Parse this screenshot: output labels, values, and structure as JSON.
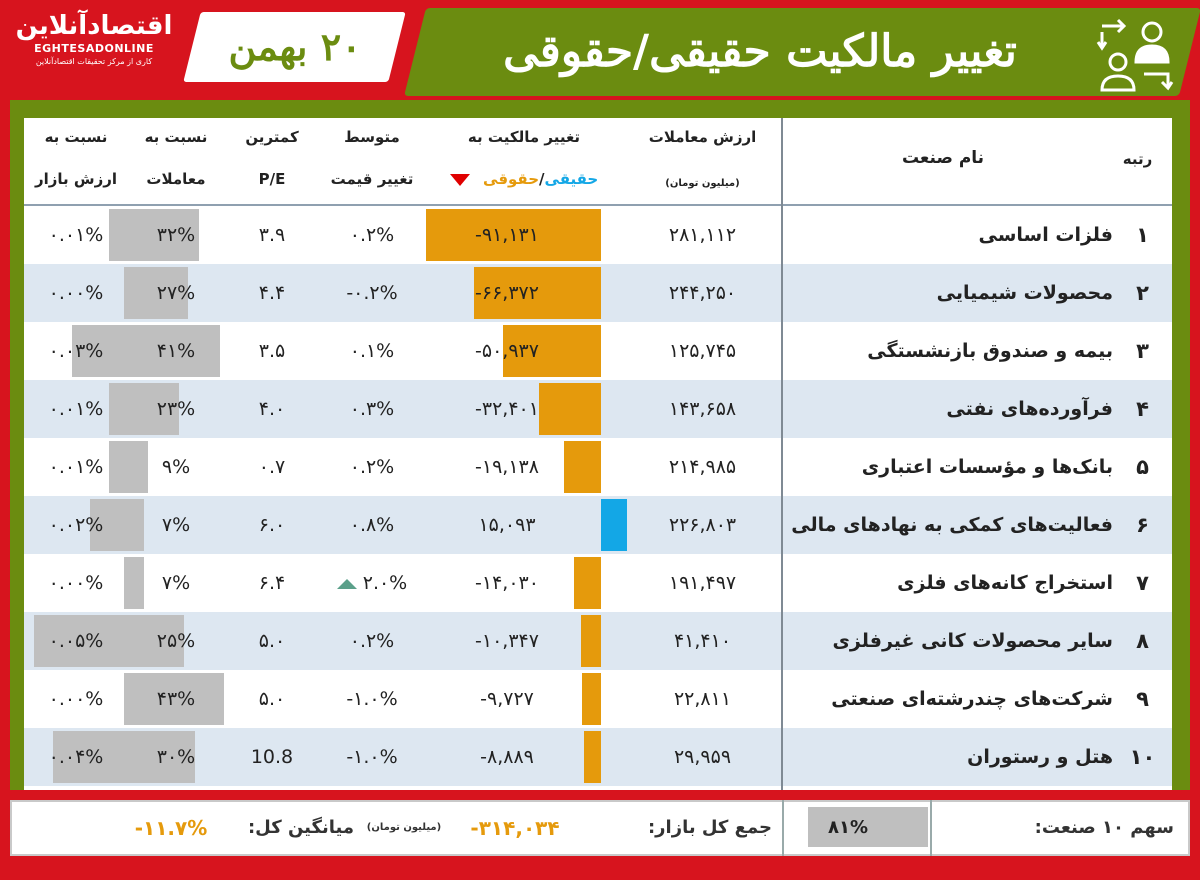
{
  "logo": {
    "line1": "اقتصادآنلاین",
    "line2": "EGHTESADONLINE",
    "line3": "کاری از مرکز تحقیقات اقتصادآنلاین"
  },
  "header": {
    "date": "۲۰ بهمن",
    "title": "تغییر مالکیت حقیقی/حقوقی",
    "icon": "ownership-transfer-icon"
  },
  "columns": {
    "rank": "رتبه",
    "industry": "نام صنعت",
    "value_a": "ارزش معاملات",
    "value_b": "(میلیون تومان)",
    "change_a": "تغییر مالکیت به",
    "change_real": "حقیقی",
    "change_slash": "/",
    "change_legal": "حقوقی",
    "avg_a": "متوسط",
    "avg_b": "تغییر قیمت",
    "pe_a": "کمترین",
    "pe_b": "P/E",
    "trade_a": "نسبت به",
    "trade_b": "معاملات",
    "mkt_a": "نسبت به",
    "mkt_b": "ارزش بازار"
  },
  "colors": {
    "green": "#6b8c10",
    "red": "#d7141e",
    "orange": "#e59a0c",
    "blue": "#13a7e6",
    "gray": "#bfbfbf"
  },
  "rows": [
    {
      "rank": "۱",
      "name": "فلزات اساسی",
      "value": "۲۸۱,۱۱۲",
      "change": "-۹۱,۱۳۱",
      "change_num": -91131,
      "avg": "۰.۲%",
      "up": false,
      "pe": "۳.۹",
      "trade": "۳۲%",
      "trade_num": 32,
      "mkt": "۰.۰۱%",
      "mkt_num": 0.01
    },
    {
      "rank": "۲",
      "name": "محصولات شیمیایی",
      "value": "۲۴۴,۲۵۰",
      "change": "-۶۶,۳۷۲",
      "change_num": -66372,
      "avg": "-۰.۲%",
      "up": false,
      "pe": "۴.۴",
      "trade": "۲۷%",
      "trade_num": 27,
      "mkt": "۰.۰۰%",
      "mkt_num": 0.0
    },
    {
      "rank": "۳",
      "name": "بیمه و صندوق بازنشستگی",
      "value": "۱۲۵,۷۴۵",
      "change": "-۵۰,۹۳۷",
      "change_num": -50937,
      "avg": "۰.۱%",
      "up": false,
      "pe": "۳.۵",
      "trade": "۴۱%",
      "trade_num": 41,
      "mkt": "۰.۰۳%",
      "mkt_num": 0.03
    },
    {
      "rank": "۴",
      "name": "فرآورده‌های نفتی",
      "value": "۱۴۳,۶۵۸",
      "change": "-۳۲,۴۰۱",
      "change_num": -32401,
      "avg": "۰.۳%",
      "up": false,
      "pe": "۴.۰",
      "trade": "۲۳%",
      "trade_num": 23,
      "mkt": "۰.۰۱%",
      "mkt_num": 0.01
    },
    {
      "rank": "۵",
      "name": "بانک‌ها و مؤسسات اعتباری",
      "value": "۲۱۴,۹۸۵",
      "change": "-۱۹,۱۳۸",
      "change_num": -19138,
      "avg": "۰.۲%",
      "up": false,
      "pe": "۰.۷",
      "trade": "۹%",
      "trade_num": 9,
      "mkt": "۰.۰۱%",
      "mkt_num": 0.01
    },
    {
      "rank": "۶",
      "name": "فعالیت‌های کمکی به نهادهای مالی",
      "value": "۲۲۶,۸۰۳",
      "change": "۱۵,۰۹۳",
      "change_num": 15093,
      "avg": "۰.۸%",
      "up": false,
      "pe": "۶.۰",
      "trade": "۷%",
      "trade_num": 7,
      "mkt": "۰.۰۲%",
      "mkt_num": 0.02
    },
    {
      "rank": "۷",
      "name": "استخراج کانه‌های فلزی",
      "value": "۱۹۱,۴۹۷",
      "change": "-۱۴,۰۳۰",
      "change_num": -14030,
      "avg": "۲.۰%",
      "up": true,
      "pe": "۶.۴",
      "trade": "۷%",
      "trade_num": 7,
      "mkt": "۰.۰۰%",
      "mkt_num": 0.0
    },
    {
      "rank": "۸",
      "name": "سایر محصولات کانی غیرفلزی",
      "value": "۴۱,۴۱۰",
      "change": "-۱۰,۳۴۷",
      "change_num": -10347,
      "avg": "۰.۲%",
      "up": false,
      "pe": "۵.۰",
      "trade": "۲۵%",
      "trade_num": 25,
      "mkt": "۰.۰۵%",
      "mkt_num": 0.05
    },
    {
      "rank": "۹",
      "name": "شرکت‌های چندرشته‌ای صنعتی",
      "value": "۲۲,۸۱۱",
      "change": "-۹,۷۲۷",
      "change_num": -9727,
      "avg": "-۱.۰%",
      "up": false,
      "pe": "۵.۰",
      "trade": "۴۳%",
      "trade_num": 43,
      "mkt": "۰.۰۰%",
      "mkt_num": 0.0
    },
    {
      "rank": "۱۰",
      "name": "هتل و رستوران",
      "value": "۲۹,۹۵۹",
      "change": "-۸,۸۸۹",
      "change_num": -8889,
      "avg": "-۱.۰%",
      "up": false,
      "pe": "10.8",
      "trade": "۳۰%",
      "trade_num": 30,
      "mkt": "۰.۰۴%",
      "mkt_num": 0.04
    }
  ],
  "footer": {
    "share_label": "سهم ۱۰ صنعت:",
    "share_value": "۸۱%",
    "share_num": 81,
    "total_label": "جمع کل بازار:",
    "total_value": "-۳۱۴,۰۳۴",
    "unit": "(میلیون تومان)",
    "avg_label": "میانگین کل:",
    "avg_value": "-۱۱.۷%"
  }
}
